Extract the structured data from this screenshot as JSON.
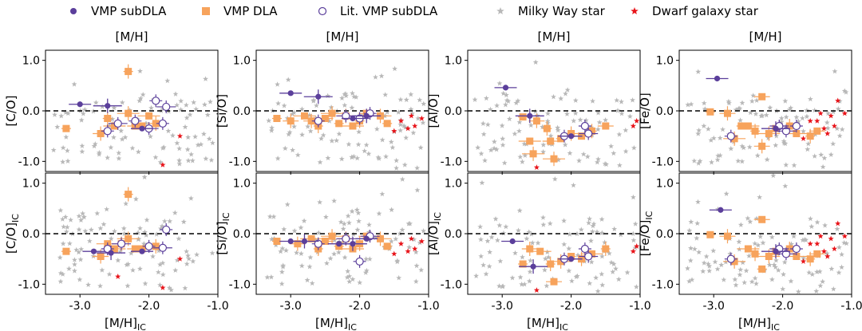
{
  "legend": [
    {
      "label": "VMP subDLA",
      "marker": "filled-circle",
      "color": "#5b3f9b"
    },
    {
      "label": "VMP DLA",
      "marker": "filled-square",
      "color": "#f7a35c"
    },
    {
      "label": "Lit. VMP subDLA",
      "marker": "open-circle",
      "color": "#5b3f9b"
    },
    {
      "label": "Milky Way star",
      "marker": "star",
      "color": "#b8b8b8"
    },
    {
      "label": "Dwarf galaxy star",
      "marker": "star",
      "color": "#e8141a"
    }
  ],
  "colors": {
    "subdla": "#5b3f9b",
    "dla": "#f7a35c",
    "mw": "#b8b8b8",
    "dwarf": "#e8141a"
  },
  "chart_data": [
    {
      "type": "scatter",
      "title": "[M/H]",
      "ylabel": "[C/O]",
      "xlim": [
        -3.5,
        -1.0
      ],
      "ylim": [
        -1.2,
        1.2
      ],
      "xticks": [
        "-3.0",
        "-2.0",
        "-1.0"
      ],
      "yticks": [
        "1.0",
        "0.0",
        "-1.0"
      ],
      "xticks_visible": false,
      "hline": 0.0,
      "vmp_subdla": [
        [
          -3.0,
          0.13
        ],
        [
          -2.6,
          0.1
        ],
        [
          -2.1,
          -0.35
        ]
      ],
      "vmp_dla": [
        [
          -3.2,
          -0.35
        ],
        [
          -2.7,
          -0.45
        ],
        [
          -2.5,
          -0.3
        ],
        [
          -2.3,
          0.78
        ],
        [
          -2.2,
          -0.3
        ],
        [
          -2.3,
          -0.05
        ],
        [
          -2.1,
          -0.3
        ],
        [
          -1.9,
          -0.25
        ],
        [
          -2.0,
          -0.1
        ],
        [
          -2.6,
          -0.15
        ]
      ],
      "lit_vmp_subdla": [
        [
          -2.6,
          -0.4
        ],
        [
          -2.45,
          -0.25
        ],
        [
          -1.9,
          0.2
        ],
        [
          -1.75,
          0.08
        ],
        [
          -1.8,
          -0.25
        ],
        [
          -2.0,
          -0.35
        ],
        [
          -2.2,
          -0.2
        ]
      ],
      "dwarf_stars": [
        [
          -1.55,
          -0.5
        ],
        [
          -1.8,
          -1.07
        ]
      ]
    },
    {
      "type": "scatter",
      "title": "[M/H]",
      "ylabel": "[Si/O]",
      "xlim": [
        -3.5,
        -1.0
      ],
      "ylim": [
        -1.2,
        1.2
      ],
      "xticks": [
        "-3.0",
        "-2.0",
        "-1.0"
      ],
      "yticks": [
        "1.0",
        "0.0",
        "-1.0"
      ],
      "xticks_visible": false,
      "hline": 0.0,
      "vmp_subdla": [
        [
          -3.0,
          0.35
        ],
        [
          -2.6,
          0.28
        ],
        [
          -2.1,
          -0.15
        ],
        [
          -1.9,
          -0.1
        ]
      ],
      "vmp_dla": [
        [
          -3.2,
          -0.15
        ],
        [
          -3.0,
          -0.2
        ],
        [
          -2.8,
          -0.1
        ],
        [
          -2.6,
          -0.3
        ],
        [
          -2.5,
          -0.15
        ],
        [
          -2.4,
          -0.05
        ],
        [
          -2.3,
          -0.25
        ],
        [
          -2.2,
          -0.1
        ],
        [
          -2.1,
          -0.3
        ],
        [
          -2.0,
          -0.2
        ],
        [
          -1.9,
          -0.05
        ],
        [
          -1.7,
          -0.1
        ],
        [
          -1.6,
          -0.25
        ],
        [
          -2.7,
          -0.2
        ]
      ],
      "lit_vmp_subdla": [
        [
          -2.6,
          -0.2
        ],
        [
          -2.2,
          -0.1
        ],
        [
          -1.85,
          -0.05
        ],
        [
          -2.0,
          -0.15
        ]
      ],
      "dwarf_stars": [
        [
          -1.4,
          -0.2
        ],
        [
          -1.3,
          -0.35
        ],
        [
          -1.5,
          -0.4
        ],
        [
          -1.2,
          -0.3
        ],
        [
          -1.1,
          -0.15
        ],
        [
          -1.25,
          -0.1
        ]
      ]
    },
    {
      "type": "scatter",
      "title": "[M/H]",
      "ylabel": "[Al/O]",
      "xlim": [
        -3.5,
        -1.0
      ],
      "ylim": [
        -1.2,
        1.2
      ],
      "xticks": [
        "-3.0",
        "-2.0",
        "-1.0"
      ],
      "yticks": [
        "1.0",
        "0.0",
        "-1.0"
      ],
      "xticks_visible": false,
      "hline": 0.0,
      "vmp_subdla": [
        [
          -2.95,
          0.46
        ],
        [
          -2.6,
          -0.1
        ],
        [
          -2.0,
          -0.5
        ]
      ],
      "vmp_dla": [
        [
          -2.7,
          -0.12
        ],
        [
          -2.5,
          -0.2
        ],
        [
          -2.6,
          -0.6
        ],
        [
          -2.35,
          -0.35
        ],
        [
          -2.3,
          -0.6
        ],
        [
          -2.25,
          -0.95
        ],
        [
          -2.15,
          -0.55
        ],
        [
          -2.0,
          -0.45
        ],
        [
          -1.85,
          -0.5
        ],
        [
          -1.7,
          -0.4
        ],
        [
          -1.5,
          -0.3
        ],
        [
          -2.55,
          -0.85
        ]
      ],
      "lit_vmp_subdla": [
        [
          -1.8,
          -0.3
        ],
        [
          -1.75,
          -0.45
        ],
        [
          -2.1,
          -0.5
        ]
      ],
      "dwarf_stars": [
        [
          -2.5,
          -1.12
        ],
        [
          -1.1,
          -0.3
        ],
        [
          -1.05,
          -0.2
        ]
      ]
    },
    {
      "type": "scatter",
      "title": "[M/H]",
      "ylabel": "[Fe/O]",
      "xlim": [
        -3.5,
        -1.0
      ],
      "ylim": [
        -1.2,
        1.2
      ],
      "xticks": [
        "-3.0",
        "-2.0",
        "-1.0"
      ],
      "yticks": [
        "1.0",
        "0.0",
        "-1.0"
      ],
      "xticks_visible": false,
      "hline": 0.0,
      "vmp_subdla": [
        [
          -2.95,
          0.64
        ],
        [
          -2.1,
          -0.35
        ]
      ],
      "vmp_dla": [
        [
          -3.05,
          -0.02
        ],
        [
          -2.8,
          -0.05
        ],
        [
          -2.5,
          -0.3
        ],
        [
          -2.4,
          -0.4
        ],
        [
          -2.3,
          0.28
        ],
        [
          -2.2,
          -0.45
        ],
        [
          -2.1,
          -0.35
        ],
        [
          -1.9,
          -0.3
        ],
        [
          -1.8,
          -0.45
        ],
        [
          -1.6,
          -0.5
        ],
        [
          -1.5,
          -0.4
        ],
        [
          -2.7,
          -0.55
        ],
        [
          -2.6,
          -0.3
        ],
        [
          -2.3,
          -0.7
        ]
      ],
      "lit_vmp_subdla": [
        [
          -2.75,
          -0.5
        ],
        [
          -2.05,
          -0.3
        ],
        [
          -1.8,
          -0.3
        ],
        [
          -1.95,
          -0.4
        ]
      ],
      "dwarf_stars": [
        [
          -1.5,
          -0.2
        ],
        [
          -1.4,
          -0.35
        ],
        [
          -1.3,
          -0.1
        ],
        [
          -1.7,
          -0.55
        ],
        [
          -1.2,
          0.2
        ],
        [
          -1.1,
          -0.05
        ],
        [
          -1.6,
          -0.2
        ],
        [
          -1.35,
          -0.45
        ],
        [
          -1.25,
          -0.3
        ],
        [
          -1.45,
          -0.05
        ]
      ]
    },
    {
      "type": "scatter",
      "xlabel": "[M/H]",
      "xlabel_sub": "IC",
      "ylabel": "[C/O]",
      "ylabel_sub": "IC",
      "xlim": [
        -3.5,
        -1.0
      ],
      "ylim": [
        -1.2,
        1.2
      ],
      "xticks": [
        "-3.0",
        "-2.0",
        "-1.0"
      ],
      "yticks": [
        "1.0",
        "0.0",
        "-1.0"
      ],
      "xticks_visible": true,
      "hline": 0.0,
      "vmp_subdla": [
        [
          -2.8,
          -0.35
        ],
        [
          -2.55,
          -0.38
        ],
        [
          -2.1,
          -0.35
        ]
      ],
      "vmp_dla": [
        [
          -3.2,
          -0.35
        ],
        [
          -2.7,
          -0.45
        ],
        [
          -2.5,
          -0.3
        ],
        [
          -2.3,
          0.78
        ],
        [
          -2.2,
          -0.3
        ],
        [
          -2.3,
          -0.1
        ],
        [
          -2.1,
          -0.3
        ],
        [
          -1.9,
          -0.25
        ],
        [
          -2.6,
          -0.2
        ],
        [
          -2.4,
          -0.2
        ]
      ],
      "lit_vmp_subdla": [
        [
          -2.6,
          -0.3
        ],
        [
          -2.4,
          -0.2
        ],
        [
          -1.75,
          0.08
        ],
        [
          -1.8,
          -0.28
        ],
        [
          -2.0,
          -0.25
        ]
      ],
      "dwarf_stars": [
        [
          -1.55,
          -0.5
        ],
        [
          -2.45,
          -0.85
        ],
        [
          -1.8,
          -1.07
        ]
      ]
    },
    {
      "type": "scatter",
      "xlabel": "[M/H]",
      "xlabel_sub": "IC",
      "ylabel": "[Si/O]",
      "ylabel_sub": "IC",
      "xlim": [
        -3.5,
        -1.0
      ],
      "ylim": [
        -1.2,
        1.2
      ],
      "xticks": [
        "-3.0",
        "-2.0",
        "-1.0"
      ],
      "yticks": [
        "1.0",
        "0.0",
        "-1.0"
      ],
      "xticks_visible": true,
      "hline": 0.0,
      "vmp_subdla": [
        [
          -3.0,
          -0.15
        ],
        [
          -2.8,
          -0.15
        ],
        [
          -2.3,
          -0.2
        ],
        [
          -2.1,
          -0.2
        ],
        [
          -1.9,
          -0.1
        ]
      ],
      "vmp_dla": [
        [
          -3.2,
          -0.15
        ],
        [
          -2.9,
          -0.2
        ],
        [
          -2.7,
          -0.1
        ],
        [
          -2.6,
          -0.3
        ],
        [
          -2.5,
          -0.15
        ],
        [
          -2.4,
          -0.05
        ],
        [
          -2.3,
          -0.25
        ],
        [
          -2.2,
          -0.1
        ],
        [
          -2.1,
          -0.3
        ],
        [
          -2.0,
          -0.2
        ],
        [
          -1.9,
          -0.05
        ],
        [
          -1.7,
          -0.1
        ],
        [
          -1.6,
          -0.25
        ]
      ],
      "lit_vmp_subdla": [
        [
          -2.6,
          -0.2
        ],
        [
          -2.2,
          -0.1
        ],
        [
          -2.0,
          -0.55
        ],
        [
          -1.85,
          -0.05
        ]
      ],
      "dwarf_stars": [
        [
          -1.4,
          -0.2
        ],
        [
          -1.3,
          -0.35
        ],
        [
          -1.5,
          -0.4
        ],
        [
          -1.2,
          -0.3
        ],
        [
          -1.1,
          -0.15
        ],
        [
          -1.25,
          -0.1
        ]
      ]
    },
    {
      "type": "scatter",
      "xlabel": "[M/H]",
      "xlabel_sub": "IC",
      "ylabel": "[Al/O]",
      "ylabel_sub": "IC",
      "xlim": [
        -3.5,
        -1.0
      ],
      "ylim": [
        -1.2,
        1.2
      ],
      "xticks": [
        "-3.0",
        "-2.0",
        "-1.0"
      ],
      "yticks": [
        "1.0",
        "0.0",
        "-1.0"
      ],
      "xticks_visible": true,
      "hline": 0.0,
      "vmp_subdla": [
        [
          -2.85,
          -0.15
        ],
        [
          -2.55,
          -0.65
        ],
        [
          -2.0,
          -0.5
        ]
      ],
      "vmp_dla": [
        [
          -2.7,
          -0.6
        ],
        [
          -2.6,
          -0.3
        ],
        [
          -2.45,
          -0.35
        ],
        [
          -2.3,
          -0.6
        ],
        [
          -2.25,
          -0.95
        ],
        [
          -2.15,
          -0.55
        ],
        [
          -2.0,
          -0.45
        ],
        [
          -1.85,
          -0.5
        ],
        [
          -1.7,
          -0.4
        ],
        [
          -1.5,
          -0.3
        ]
      ],
      "lit_vmp_subdla": [
        [
          -1.8,
          -0.3
        ],
        [
          -1.75,
          -0.45
        ],
        [
          -2.1,
          -0.5
        ]
      ],
      "dwarf_stars": [
        [
          -2.5,
          -1.12
        ],
        [
          -1.1,
          -0.35
        ],
        [
          -1.05,
          -0.25
        ]
      ]
    },
    {
      "type": "scatter",
      "xlabel": "[M/H]",
      "xlabel_sub": "IC",
      "ylabel": "[Fe/O]",
      "ylabel_sub": "IC",
      "xlim": [
        -3.5,
        -1.0
      ],
      "ylim": [
        -1.2,
        1.2
      ],
      "xticks": [
        "-3.0",
        "-2.0",
        "-1.0"
      ],
      "yticks": [
        "1.0",
        "0.0",
        "-1.0"
      ],
      "xticks_visible": true,
      "hline": 0.0,
      "vmp_subdla": [
        [
          -2.9,
          0.47
        ],
        [
          -2.1,
          -0.35
        ]
      ],
      "vmp_dla": [
        [
          -3.05,
          -0.02
        ],
        [
          -2.8,
          -0.05
        ],
        [
          -2.5,
          -0.3
        ],
        [
          -2.4,
          -0.4
        ],
        [
          -2.3,
          0.28
        ],
        [
          -2.2,
          -0.45
        ],
        [
          -2.1,
          -0.35
        ],
        [
          -1.9,
          -0.3
        ],
        [
          -1.8,
          -0.45
        ],
        [
          -1.6,
          -0.5
        ],
        [
          -1.5,
          -0.4
        ],
        [
          -2.7,
          -0.55
        ],
        [
          -2.3,
          -0.7
        ]
      ],
      "lit_vmp_subdla": [
        [
          -2.75,
          -0.5
        ],
        [
          -2.05,
          -0.3
        ],
        [
          -1.8,
          -0.3
        ],
        [
          -1.95,
          -0.4
        ]
      ],
      "dwarf_stars": [
        [
          -1.5,
          -0.2
        ],
        [
          -1.4,
          -0.35
        ],
        [
          -1.3,
          -0.1
        ],
        [
          -1.7,
          -0.55
        ],
        [
          -1.2,
          0.2
        ],
        [
          -1.1,
          -0.05
        ],
        [
          -1.6,
          -0.2
        ],
        [
          -1.35,
          -0.45
        ],
        [
          -1.25,
          -0.3
        ],
        [
          -1.45,
          -0.05
        ]
      ]
    }
  ]
}
